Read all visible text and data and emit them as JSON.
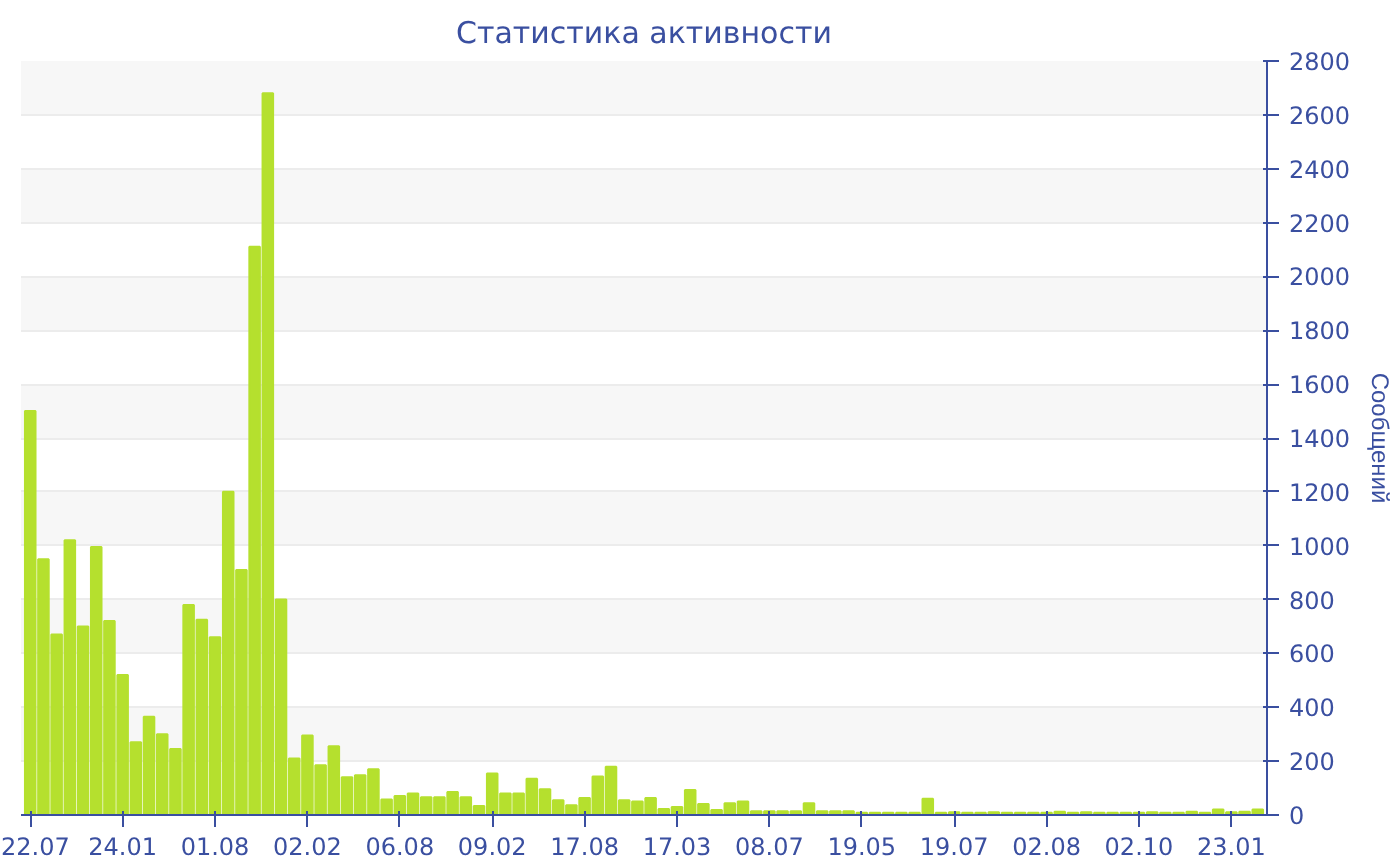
{
  "chart_data": {
    "type": "bar",
    "title": "Статистика активности",
    "ylabel": "Сообщений",
    "categories": [
      "22.07",
      null,
      null,
      null,
      null,
      null,
      null,
      "24.01",
      null,
      null,
      null,
      null,
      null,
      null,
      "01.08",
      null,
      null,
      null,
      null,
      null,
      null,
      "02.02",
      null,
      null,
      null,
      null,
      null,
      null,
      "06.08",
      null,
      null,
      null,
      null,
      null,
      null,
      "09.02",
      null,
      null,
      null,
      null,
      null,
      null,
      "17.08",
      null,
      null,
      null,
      null,
      null,
      null,
      "17.03",
      null,
      null,
      null,
      null,
      null,
      null,
      "08.07",
      null,
      null,
      null,
      null,
      null,
      null,
      "19.05",
      null,
      null,
      null,
      null,
      null,
      null,
      "19.07",
      null,
      null,
      null,
      null,
      null,
      null,
      "02.08",
      null,
      null,
      null,
      null,
      null,
      null,
      "02.10",
      null,
      null,
      null,
      null,
      null,
      null,
      "23.01",
      null,
      null
    ],
    "values": [
      1500,
      950,
      670,
      1020,
      700,
      995,
      720,
      520,
      270,
      365,
      300,
      245,
      780,
      725,
      660,
      1200,
      910,
      2110,
      2680,
      800,
      210,
      295,
      185,
      255,
      140,
      148,
      170,
      58,
      71,
      80,
      66,
      66,
      85,
      66,
      33,
      154,
      80,
      80,
      135,
      96,
      55,
      36,
      63,
      143,
      179,
      55,
      50,
      63,
      22,
      30,
      93,
      41,
      19,
      44,
      50,
      14,
      14,
      14,
      14,
      44,
      14,
      14,
      14,
      8,
      8,
      8,
      8,
      8,
      60,
      8,
      10,
      8,
      8,
      10,
      8,
      8,
      8,
      8,
      12,
      8,
      10,
      8,
      8,
      8,
      8,
      10,
      8,
      8,
      12,
      8,
      20,
      10,
      12,
      20
    ],
    "color": "#b5e02e",
    "ylim": [
      0,
      2800
    ],
    "yticks": [
      0,
      200,
      400,
      600,
      800,
      1000,
      1200,
      1400,
      1600,
      1800,
      2000,
      2200,
      2400,
      2600,
      2800
    ],
    "grid": "y"
  }
}
